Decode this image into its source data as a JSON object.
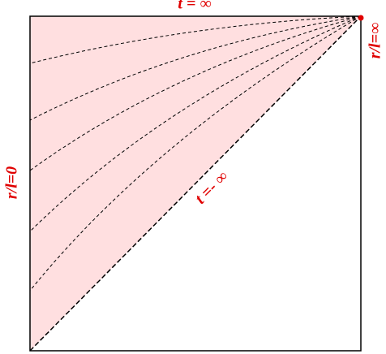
{
  "labels": {
    "top": "t = ∞",
    "right": "r/l=∞",
    "left": "r/l=0",
    "diagonal": "t =- ∞"
  }
}
